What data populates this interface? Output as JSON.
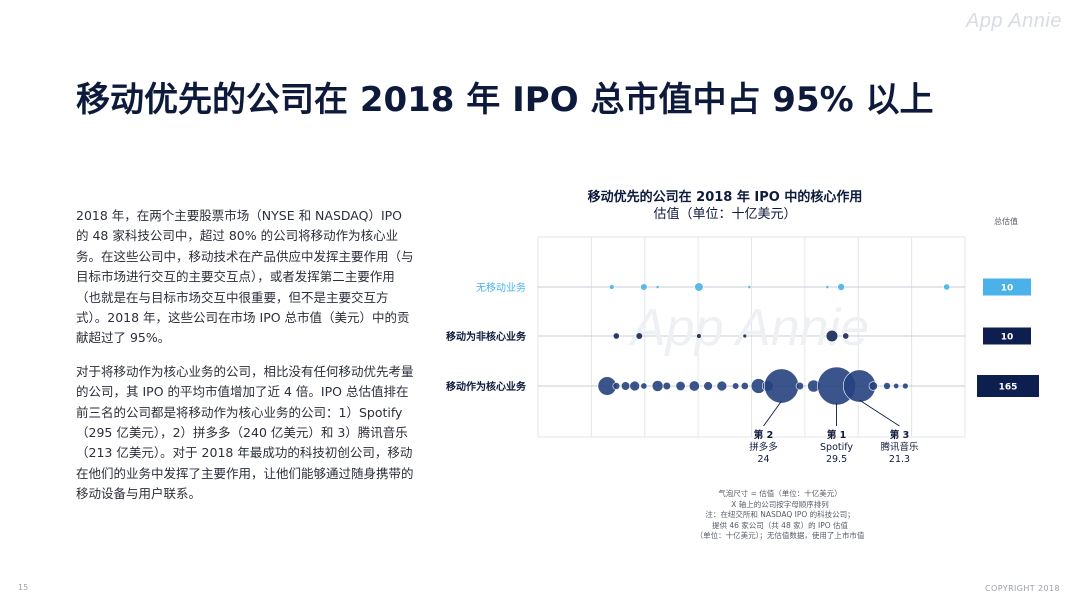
{
  "brand": "App Annie",
  "title": "移动优先的公司在 2018 年 IPO 总市值中占 95% 以上",
  "body": {
    "paragraph1": "2018 年，在两个主要股票市场（NYSE 和 NASDAQ）IPO 的 48 家科技公司中，超过 80% 的公司将移动作为核心业务。在这些公司中，移动技术在产品供应中发挥主要作用（与目标市场进行交互的主要交互点），或者发挥第二主要作用（也就是在与目标市场交互中很重要，但不是主要交互方式）。2018 年，这些公司在市场 IPO 总市值（美元）中的贡献超过了 95%。",
    "paragraph2": "对于将移动作为核心业务的公司，相比没有任何移动优先考量的公司，其 IPO 的平均市值增加了近 4 倍。IPO 总估值排在前三名的公司都是将移动作为核心业务的公司：1）Spotify（295 亿美元），2）拼多多（240 亿美元）和 3）腾讯音乐（213 亿美元）。对于 2018 年最成功的科技初创公司，移动在他们的业务中发挥了主要作用，让他们能够通过随身携带的移动设备与用户联系。"
  },
  "chart_data": {
    "type": "scatter",
    "title": "移动优先的公司在 2018 年 IPO 中的核心作用",
    "subtitle": "估值（单位：十亿美元）",
    "total_header": "总估值",
    "colors": {
      "none": "#4ab2e8",
      "noncore": "#14275a",
      "core": "#26417f",
      "total_core": "#0c1f4e"
    },
    "rows": [
      {
        "label": "无移动业务",
        "total": "10",
        "color": "#4ab2e8",
        "total_color": "#4ab2e8",
        "bubbles": [
          {
            "x": 3,
            "v": 0.5
          },
          {
            "x": 10,
            "v": 0.9
          },
          {
            "x": 13,
            "v": 0.2
          },
          {
            "x": 22,
            "v": 1.5
          },
          {
            "x": 33,
            "v": 0.2
          },
          {
            "x": 50,
            "v": 0.1
          },
          {
            "x": 53,
            "v": 1.0
          },
          {
            "x": 76,
            "v": 0.8
          }
        ]
      },
      {
        "label": "移动为非核心业务",
        "total": "10",
        "color": "#14275a",
        "total_color": "#0c1f4e",
        "bubbles": [
          {
            "x": 4,
            "v": 0.8
          },
          {
            "x": 9,
            "v": 0.9
          },
          {
            "x": 22,
            "v": 0.5
          },
          {
            "x": 32,
            "v": 0.3
          },
          {
            "x": 51,
            "v": 2.8
          },
          {
            "x": 54,
            "v": 0.8
          }
        ]
      },
      {
        "label": "移动作为核心业务",
        "total": "165",
        "color": "#26417f",
        "total_color": "#0c1f4e",
        "bubbles": [
          {
            "x": 2,
            "v": 7.0
          },
          {
            "x": 4,
            "v": 1.0
          },
          {
            "x": 6,
            "v": 1.5
          },
          {
            "x": 8,
            "v": 2.0
          },
          {
            "x": 10,
            "v": 0.8
          },
          {
            "x": 13,
            "v": 2.5
          },
          {
            "x": 15,
            "v": 1.2
          },
          {
            "x": 18,
            "v": 1.8
          },
          {
            "x": 21,
            "v": 2.2
          },
          {
            "x": 24,
            "v": 1.6
          },
          {
            "x": 27,
            "v": 2.0
          },
          {
            "x": 30,
            "v": 0.9
          },
          {
            "x": 32,
            "v": 1.1
          },
          {
            "x": 35,
            "v": 4.5
          },
          {
            "x": 37,
            "v": 2.5
          },
          {
            "x": 40,
            "v": 24
          },
          {
            "x": 44,
            "v": 1.2
          },
          {
            "x": 47,
            "v": 3.0
          },
          {
            "x": 52,
            "v": 29.5
          },
          {
            "x": 57,
            "v": 21.3
          },
          {
            "x": 60,
            "v": 1.5
          },
          {
            "x": 63,
            "v": 1.0
          },
          {
            "x": 65,
            "v": 0.6
          },
          {
            "x": 67,
            "v": 0.7
          }
        ]
      }
    ],
    "callouts": [
      {
        "rank": "第 1",
        "name": "Spotify",
        "value": "29.5",
        "x": 52
      },
      {
        "rank": "第 2",
        "name": "拼多多",
        "value": "24",
        "x": 40
      },
      {
        "rank": "第 3",
        "name": "腾讯音乐",
        "value": "21.3",
        "x": 57
      }
    ]
  },
  "footnote": {
    "line1": "气泡尺寸 = 估值（单位：十亿美元）",
    "line2": "X 轴上的公司按字母顺序排列",
    "line3": "注：在纽交所和 NASDAQ IPO 的科技公司；",
    "line4": "提供 46 家公司（共 48 家）的 IPO 估值",
    "line5": "（单位：十亿美元）；无估值数据，使用了上市市值"
  },
  "page_number": "15",
  "copyright": "COPYRIGHT 2018"
}
